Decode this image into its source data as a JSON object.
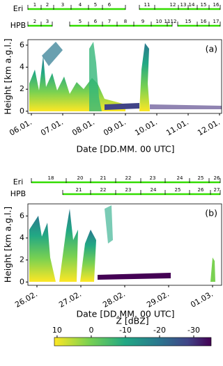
{
  "panels": [
    {
      "label": "(a)",
      "rows": [
        {
          "name": "Eri",
          "ids": [
            "1",
            "2",
            "3",
            "4",
            "5",
            "6",
            "11",
            "12",
            "13",
            "14",
            "15",
            "16"
          ]
        },
        {
          "name": "HPB",
          "ids": [
            "2",
            "3",
            "5",
            "6",
            "7",
            "8",
            "9",
            "10",
            "11",
            "12",
            "15",
            "16",
            "17"
          ]
        }
      ],
      "ylim": [
        -0.2,
        6.5
      ],
      "yticks": [
        0,
        2,
        4,
        6
      ],
      "xticks": [
        "06.01.",
        "07.01.",
        "08.01.",
        "09.01.",
        "10.01.",
        "11.01.",
        "12.01."
      ],
      "ylabel": "Height [km a.g.l.]",
      "xlabel": "Date [DD.MM. 00 UTC]"
    },
    {
      "label": "(b)",
      "rows": [
        {
          "name": "Eri",
          "ids": [
            "18",
            "20",
            "21",
            "22",
            "23",
            "24",
            "25",
            "26"
          ]
        },
        {
          "name": "HPB",
          "ids": [
            "21",
            "22",
            "23",
            "24",
            "25",
            "26",
            "27"
          ]
        }
      ],
      "ylim": [
        -0.3,
        7.1
      ],
      "yticks": [
        0,
        2,
        4,
        6
      ],
      "xticks": [
        "26.02.",
        "27.02.",
        "28.02.",
        "29.02.",
        "01.03."
      ],
      "ylabel": "Height [km a.g.l.]",
      "xlabel": "Date [DD.MM. 00 UTC]"
    }
  ],
  "colorbar": {
    "label": "Z [dBZ]",
    "lim": [
      10.8,
      -35.1
    ],
    "ticks": [
      10,
      0,
      -10,
      -20,
      -30
    ]
  }
}
